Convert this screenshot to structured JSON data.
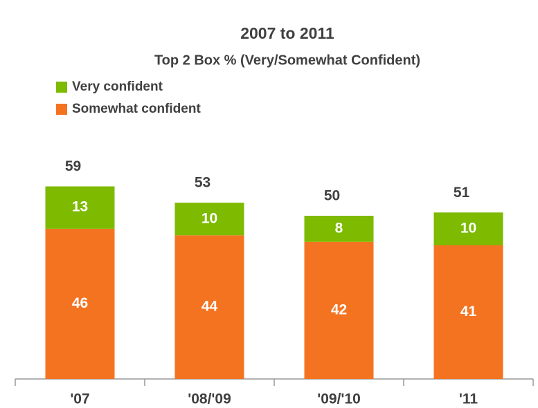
{
  "chart_data": {
    "type": "stacked_bar",
    "title": "2007 to 2011",
    "subtitle": "Top 2 Box % (Very/Somewhat Confident)",
    "categories": [
      "'07",
      "'08/'09",
      "'09/'10",
      "'11"
    ],
    "series": [
      {
        "name": "Somewhat confident",
        "color": "#f47321",
        "values": [
          46,
          44,
          42,
          41
        ]
      },
      {
        "name": "Very confident",
        "color": "#7dba00",
        "values": [
          13,
          10,
          8,
          10
        ]
      }
    ],
    "totals": [
      59,
      53,
      50,
      51
    ]
  }
}
